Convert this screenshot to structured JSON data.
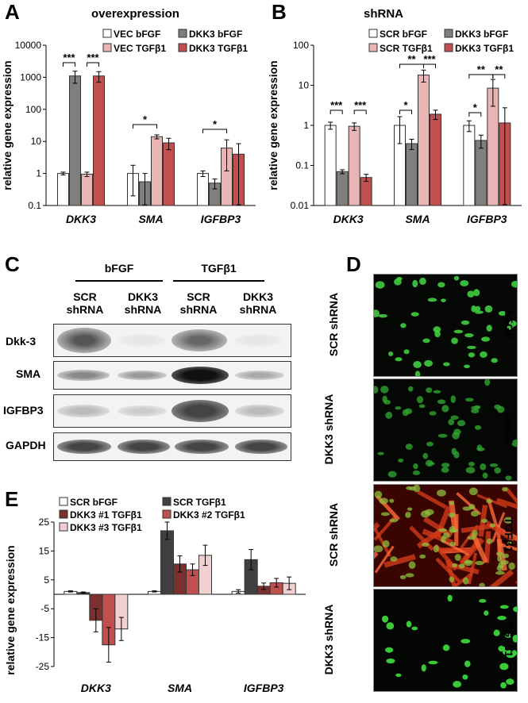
{
  "panels": {
    "A": "A",
    "B": "B",
    "C": "C",
    "D": "D",
    "E": "E"
  },
  "chart_data": [
    {
      "id": "A",
      "type": "bar",
      "title": "overexpression",
      "ylabel": "relative gene expression",
      "yscale": "log",
      "ylim": [
        0.1,
        10000
      ],
      "yticks": [
        "0.1",
        "1",
        "10",
        "100",
        "1000",
        "10000"
      ],
      "categories": [
        "DKK3",
        "SMA",
        "IGFBP3"
      ],
      "series": [
        {
          "name": "VEC bFGF",
          "color": "#ffffff",
          "values": [
            1.0,
            1.0,
            1.0
          ],
          "errors": [
            0.1,
            0.8,
            0.2
          ]
        },
        {
          "name": "DKK3 bFGF",
          "color": "#7f7f7f",
          "values": [
            1100,
            0.55,
            0.5
          ],
          "errors": [
            450,
            0.45,
            0.17
          ]
        },
        {
          "name": "VEC TGFβ1",
          "color": "#e8b4b4",
          "values": [
            0.95,
            14,
            6.2
          ],
          "errors": [
            0.15,
            2,
            5
          ]
        },
        {
          "name": "DKK3 TGFβ1",
          "color": "#c0504d",
          "values": [
            1100,
            9,
            4
          ],
          "errors": [
            400,
            3.5,
            4.5
          ]
        }
      ],
      "significance": [
        "***",
        "***",
        "*",
        "*"
      ],
      "legend_position": "top-right"
    },
    {
      "id": "B",
      "type": "bar",
      "title": "shRNA",
      "ylabel": "relative gene expression",
      "yscale": "log",
      "ylim": [
        0.01,
        100
      ],
      "yticks": [
        "0.01",
        "0.1",
        "1",
        "10",
        "100"
      ],
      "categories": [
        "DKK3",
        "SMA",
        "IGFBP3"
      ],
      "series": [
        {
          "name": "SCR bFGF",
          "color": "#ffffff",
          "values": [
            1.0,
            1.0,
            1.0
          ],
          "errors": [
            0.2,
            0.65,
            0.3
          ]
        },
        {
          "name": "DKK3 bFGF",
          "color": "#7f7f7f",
          "values": [
            0.07,
            0.35,
            0.42
          ],
          "errors": [
            0.008,
            0.1,
            0.15
          ]
        },
        {
          "name": "SCR TGFβ1",
          "color": "#e8b4b4",
          "values": [
            0.95,
            18,
            8.5
          ],
          "errors": [
            0.2,
            6,
            5.5
          ]
        },
        {
          "name": "DKK3 TGFβ1",
          "color": "#c0504d",
          "values": [
            0.05,
            1.9,
            1.15
          ],
          "errors": [
            0.01,
            0.5,
            1.6
          ]
        }
      ],
      "significance": [
        "***",
        "***",
        "*",
        "**",
        "***",
        "*",
        "**",
        "**"
      ],
      "legend_position": "top-right"
    },
    {
      "id": "E",
      "type": "bar",
      "ylabel": "relative gene expression",
      "yscale": "linear",
      "ylim": [
        -25,
        25
      ],
      "yticks": [
        "-25",
        "-15",
        "-5",
        "5",
        "15",
        "25"
      ],
      "categories": [
        "DKK3",
        "SMA",
        "IGFBP3"
      ],
      "series": [
        {
          "name": "SCR bFGF",
          "color": "#ffffff",
          "values": [
            1.0,
            1.0,
            1.0
          ],
          "errors": [
            0.2,
            0.2,
            0.6
          ]
        },
        {
          "name": "SCR TGFβ1",
          "color": "#404040",
          "values": [
            0.6,
            22,
            12
          ],
          "errors": [
            0.2,
            3,
            3.5
          ]
        },
        {
          "name": "DKK3 #1 TGFβ1",
          "color": "#7b2f2f",
          "values": [
            -9,
            10.5,
            2.8
          ],
          "errors": [
            4,
            2.8,
            1.1
          ]
        },
        {
          "name": "DKK3 #2 TGFβ1",
          "color": "#c0504d",
          "values": [
            -17.5,
            8.5,
            4
          ],
          "errors": [
            6,
            2,
            1.5
          ]
        },
        {
          "name": "DKK3 #3 TGFβ1",
          "color": "#f3d0d0",
          "values": [
            -12,
            13.5,
            3.8
          ],
          "errors": [
            4,
            3.5,
            2.2
          ]
        }
      ],
      "legend_position": "top"
    }
  ],
  "blot": {
    "groups": [
      "bFGF",
      "TGFβ1"
    ],
    "lanes": [
      "SCR\nshRNA",
      "DKK3\nshRNA",
      "SCR\nshRNA",
      "DKK3\nshRNA"
    ],
    "lane_top": [
      "SCR",
      "DKK3",
      "SCR",
      "DKK3"
    ],
    "lane_bottom": [
      "shRNA",
      "shRNA",
      "shRNA",
      "shRNA"
    ],
    "rows": [
      "Dkk-3",
      "SMA",
      "IGFBP3",
      "GAPDH"
    ]
  },
  "microscopy": {
    "left_labels": [
      "SCR shRNA",
      "DKK3 shRNA",
      "SCR shRNA",
      "DKK3 shRNA"
    ],
    "right_labels": [
      "bFGF",
      "bFGF",
      "TGFβ1",
      "TGFβ1"
    ]
  }
}
